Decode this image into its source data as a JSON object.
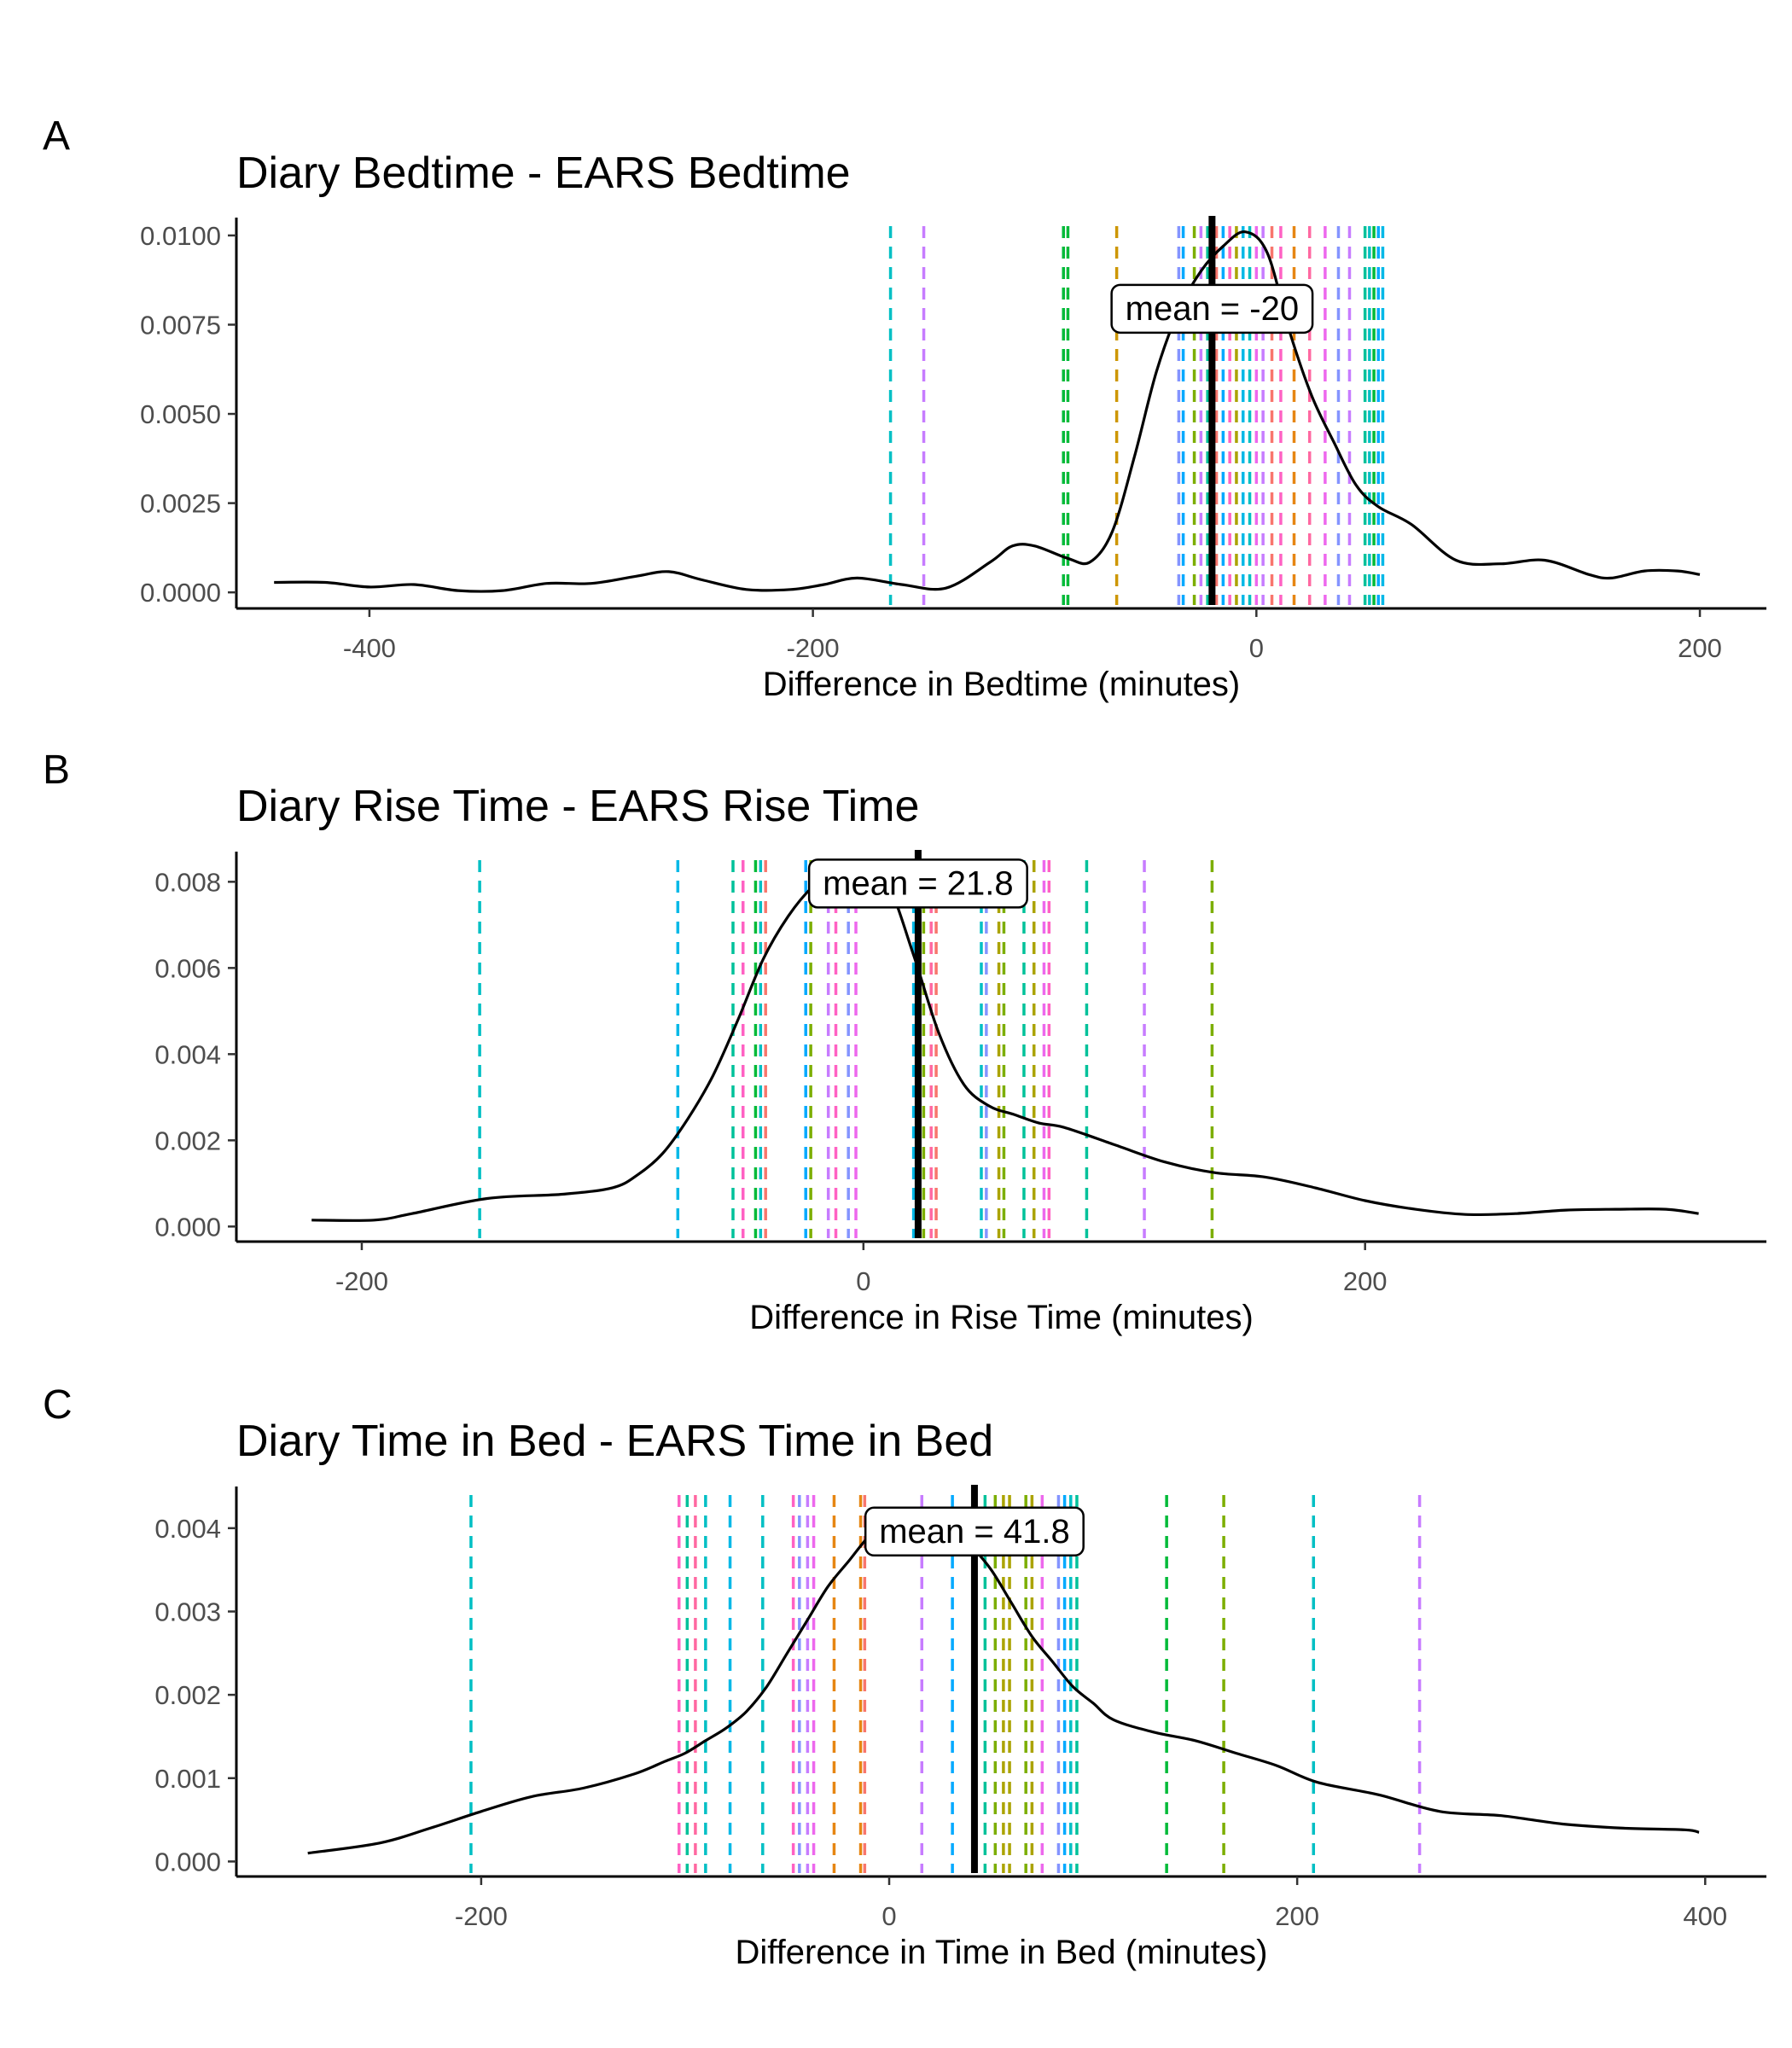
{
  "chart_data": [
    {
      "type": "line",
      "panel": "A",
      "title": "Diary Bedtime - EARS Bedtime",
      "xlabel": "Difference in Bedtime (minutes)",
      "ylabel": "",
      "xlim": [
        -460,
        230
      ],
      "ylim": [
        -0.00045,
        0.0105
      ],
      "xticks": [
        -400,
        -200,
        0,
        200
      ],
      "xtick_labels": [
        "-400",
        "-200",
        "0",
        "200"
      ],
      "yticks": [
        0,
        0.0025,
        0.005,
        0.0075,
        0.01
      ],
      "ytick_labels": [
        "0.0000",
        "0.0025",
        "0.0050",
        "0.0075",
        "0.0100"
      ],
      "mean": -20,
      "mean_label": "mean =  -20",
      "mean_label_pos": [
        -20,
        0.00797
      ],
      "density": {
        "x": [
          -443,
          -420,
          -400,
          -380,
          -360,
          -340,
          -320,
          -300,
          -280,
          -265,
          -250,
          -230,
          -210,
          -195,
          -180,
          -160,
          -140,
          -120,
          -110,
          -100,
          -85,
          -75,
          -65,
          -55,
          -45,
          -35,
          -25,
          -15,
          -5,
          5,
          15,
          25,
          35,
          45,
          55,
          70,
          90,
          110,
          130,
          150,
          160,
          175,
          190,
          200
        ],
        "y": [
          0.00028,
          0.00028,
          0.00015,
          0.00022,
          5e-05,
          5e-05,
          0.00025,
          0.00025,
          0.00045,
          0.00058,
          0.00035,
          8e-05,
          8e-05,
          0.00022,
          0.0004,
          0.00022,
          0.00012,
          0.00085,
          0.0013,
          0.0013,
          0.00095,
          0.00085,
          0.0017,
          0.0038,
          0.0062,
          0.0079,
          0.009,
          0.0097,
          0.0101,
          0.0095,
          0.0073,
          0.0055,
          0.0042,
          0.003,
          0.0024,
          0.0019,
          0.0009,
          0.0008,
          0.0009,
          0.0005,
          0.0004,
          0.0006,
          0.0006,
          0.0005
        ]
      },
      "subject_lines": [
        {
          "x": -165,
          "color": "#00bfc4"
        },
        {
          "x": -150,
          "color": "#c77cff"
        },
        {
          "x": -87,
          "color": "#00ba38"
        },
        {
          "x": -85,
          "color": "#00ba38"
        },
        {
          "x": -63,
          "color": "#cd9600"
        },
        {
          "x": -35,
          "color": "#8494ff"
        },
        {
          "x": -33,
          "color": "#00a9ff"
        },
        {
          "x": -28,
          "color": "#7cae00"
        },
        {
          "x": -25,
          "color": "#c77cff"
        },
        {
          "x": -22,
          "color": "#00c19a"
        },
        {
          "x": -18,
          "color": "#f8766d"
        },
        {
          "x": -15,
          "color": "#00a9ff"
        },
        {
          "x": -12,
          "color": "#ff61c3"
        },
        {
          "x": -9,
          "color": "#aba300"
        },
        {
          "x": -6,
          "color": "#00b8e7"
        },
        {
          "x": -3,
          "color": "#00bfc4"
        },
        {
          "x": 0,
          "color": "#ed68ed"
        },
        {
          "x": 3,
          "color": "#c77cff"
        },
        {
          "x": 7,
          "color": "#f8766d"
        },
        {
          "x": 11,
          "color": "#ff61c3"
        },
        {
          "x": 17,
          "color": "#e68613"
        },
        {
          "x": 24,
          "color": "#ff68a1"
        },
        {
          "x": 31,
          "color": "#ed68ed"
        },
        {
          "x": 37,
          "color": "#8494ff"
        },
        {
          "x": 42,
          "color": "#c77cff"
        },
        {
          "x": 49,
          "color": "#00c19a"
        },
        {
          "x": 51,
          "color": "#00bfc4"
        },
        {
          "x": 53,
          "color": "#00ba38"
        },
        {
          "x": 55,
          "color": "#00a9ff"
        },
        {
          "x": 57,
          "color": "#00b8e7"
        }
      ]
    },
    {
      "type": "line",
      "panel": "B",
      "title": "Diary Rise Time - EARS Rise Time",
      "xlabel": "Difference in Rise Time (minutes)",
      "ylabel": "",
      "xlim": [
        -250,
        360
      ],
      "ylim": [
        -0.00035,
        0.0087
      ],
      "xticks": [
        -200,
        0,
        200
      ],
      "xtick_labels": [
        "-200",
        "0",
        "200"
      ],
      "yticks": [
        0,
        0.002,
        0.004,
        0.006,
        0.008
      ],
      "ytick_labels": [
        "0.000",
        "0.002",
        "0.004",
        "0.006",
        "0.008"
      ],
      "mean": 21.8,
      "mean_label": "mean =  21.8",
      "mean_label_pos": [
        21.8,
        0.00798
      ],
      "density": {
        "x": [
          -220,
          -195,
          -180,
          -150,
          -120,
          -100,
          -90,
          -80,
          -70,
          -60,
          -50,
          -40,
          -30,
          -20,
          -10,
          0,
          10,
          20,
          30,
          40,
          50,
          60,
          70,
          80,
          100,
          120,
          140,
          160,
          180,
          200,
          220,
          240,
          260,
          280,
          300,
          320,
          333
        ],
        "y": [
          0.00015,
          0.00015,
          0.0003,
          0.00065,
          0.00075,
          0.0009,
          0.0012,
          0.0017,
          0.0025,
          0.0035,
          0.0048,
          0.0062,
          0.0072,
          0.0079,
          0.0083,
          0.0083,
          0.0079,
          0.0063,
          0.0045,
          0.0033,
          0.0028,
          0.0026,
          0.0024,
          0.0023,
          0.0019,
          0.0015,
          0.00125,
          0.00115,
          0.0009,
          0.0006,
          0.0004,
          0.00028,
          0.0003,
          0.00038,
          0.0004,
          0.0004,
          0.0003
        ]
      },
      "subject_lines": [
        {
          "x": -153,
          "color": "#00bfc4"
        },
        {
          "x": -74,
          "color": "#00b8e7"
        },
        {
          "x": -52,
          "color": "#00c19a"
        },
        {
          "x": -48,
          "color": "#ff61c3"
        },
        {
          "x": -43,
          "color": "#00ba38"
        },
        {
          "x": -41,
          "color": "#00bfc4"
        },
        {
          "x": -39,
          "color": "#f8766d"
        },
        {
          "x": -23,
          "color": "#00a9ff"
        },
        {
          "x": -21,
          "color": "#7cae00"
        },
        {
          "x": -14,
          "color": "#c77cff"
        },
        {
          "x": -11,
          "color": "#ff61c3"
        },
        {
          "x": -6,
          "color": "#8494ff"
        },
        {
          "x": -3,
          "color": "#ed68ed"
        },
        {
          "x": 20,
          "color": "#00b8e7"
        },
        {
          "x": 24,
          "color": "#7cae00"
        },
        {
          "x": 27,
          "color": "#ff68a1"
        },
        {
          "x": 29,
          "color": "#f8766d"
        },
        {
          "x": 47,
          "color": "#00bfc4"
        },
        {
          "x": 49,
          "color": "#8494ff"
        },
        {
          "x": 54,
          "color": "#aba300"
        },
        {
          "x": 56,
          "color": "#7cae00"
        },
        {
          "x": 64,
          "color": "#00c19a"
        },
        {
          "x": 68,
          "color": "#aba300"
        },
        {
          "x": 72,
          "color": "#ed68ed"
        },
        {
          "x": 74,
          "color": "#ff61c3"
        },
        {
          "x": 89,
          "color": "#00c19a"
        },
        {
          "x": 112,
          "color": "#c77cff"
        },
        {
          "x": 139,
          "color": "#7cae00"
        }
      ]
    },
    {
      "type": "line",
      "panel": "C",
      "title": "Diary Time in Bed - EARS Time in Bed",
      "xlabel": "Difference in Time in Bed (minutes)",
      "ylabel": "",
      "xlim": [
        -320,
        430
      ],
      "ylim": [
        -0.00018,
        0.0045
      ],
      "xticks": [
        -200,
        0,
        200,
        400
      ],
      "xtick_labels": [
        "-200",
        "0",
        "200",
        "400"
      ],
      "yticks": [
        0,
        0.001,
        0.002,
        0.003,
        0.004
      ],
      "ytick_labels": [
        "0.000",
        "0.001",
        "0.002",
        "0.003",
        "0.004"
      ],
      "mean": 41.8,
      "mean_label": "mean =  41.8",
      "mean_label_pos": [
        41.8,
        0.00397
      ],
      "density": {
        "x": [
          -285,
          -250,
          -225,
          -200,
          -175,
          -150,
          -125,
          -110,
          -100,
          -90,
          -80,
          -70,
          -60,
          -50,
          -40,
          -30,
          -20,
          -10,
          0,
          10,
          20,
          30,
          40,
          50,
          60,
          70,
          80,
          90,
          100,
          110,
          130,
          150,
          170,
          190,
          210,
          240,
          270,
          300,
          330,
          360,
          390,
          397
        ],
        "y": [
          0.0001,
          0.00022,
          0.0004,
          0.0006,
          0.00078,
          0.00088,
          0.00105,
          0.0012,
          0.0013,
          0.00145,
          0.0016,
          0.0018,
          0.0021,
          0.0025,
          0.0029,
          0.0033,
          0.0036,
          0.0039,
          0.0041,
          0.0042,
          0.0042,
          0.0041,
          0.0038,
          0.0035,
          0.0031,
          0.0027,
          0.0024,
          0.0021,
          0.0019,
          0.0017,
          0.00155,
          0.00145,
          0.0013,
          0.00115,
          0.00095,
          0.0008,
          0.0006,
          0.00055,
          0.00045,
          0.0004,
          0.00038,
          0.00035
        ]
      },
      "subject_lines": [
        {
          "x": -205,
          "color": "#00bfc4"
        },
        {
          "x": -103,
          "color": "#ff61c3"
        },
        {
          "x": -99,
          "color": "#00c19a"
        },
        {
          "x": -95,
          "color": "#ff68a1"
        },
        {
          "x": -90,
          "color": "#00bfc4"
        },
        {
          "x": -78,
          "color": "#00b8e7"
        },
        {
          "x": -62,
          "color": "#00bfc4"
        },
        {
          "x": -47,
          "color": "#ff61c3"
        },
        {
          "x": -44,
          "color": "#8494ff"
        },
        {
          "x": -40,
          "color": "#c77cff"
        },
        {
          "x": -37,
          "color": "#ed68ed"
        },
        {
          "x": -27,
          "color": "#e68613"
        },
        {
          "x": -14,
          "color": "#e68613"
        },
        {
          "x": -12,
          "color": "#f8766d"
        },
        {
          "x": 16,
          "color": "#c77cff"
        },
        {
          "x": 31,
          "color": "#00a9ff"
        },
        {
          "x": 47,
          "color": "#00c19a"
        },
        {
          "x": 52,
          "color": "#7cae00"
        },
        {
          "x": 56,
          "color": "#aba300"
        },
        {
          "x": 59,
          "color": "#aba300"
        },
        {
          "x": 67,
          "color": "#7cae00"
        },
        {
          "x": 70,
          "color": "#aba300"
        },
        {
          "x": 75,
          "color": "#ed68ed"
        },
        {
          "x": 83,
          "color": "#8494ff"
        },
        {
          "x": 86,
          "color": "#00a9ff"
        },
        {
          "x": 89,
          "color": "#00bfc4"
        },
        {
          "x": 92,
          "color": "#00c19a"
        },
        {
          "x": 136,
          "color": "#00ba38"
        },
        {
          "x": 164,
          "color": "#7cae00"
        },
        {
          "x": 208,
          "color": "#00bfc4"
        },
        {
          "x": 260,
          "color": "#c77cff"
        }
      ]
    }
  ]
}
